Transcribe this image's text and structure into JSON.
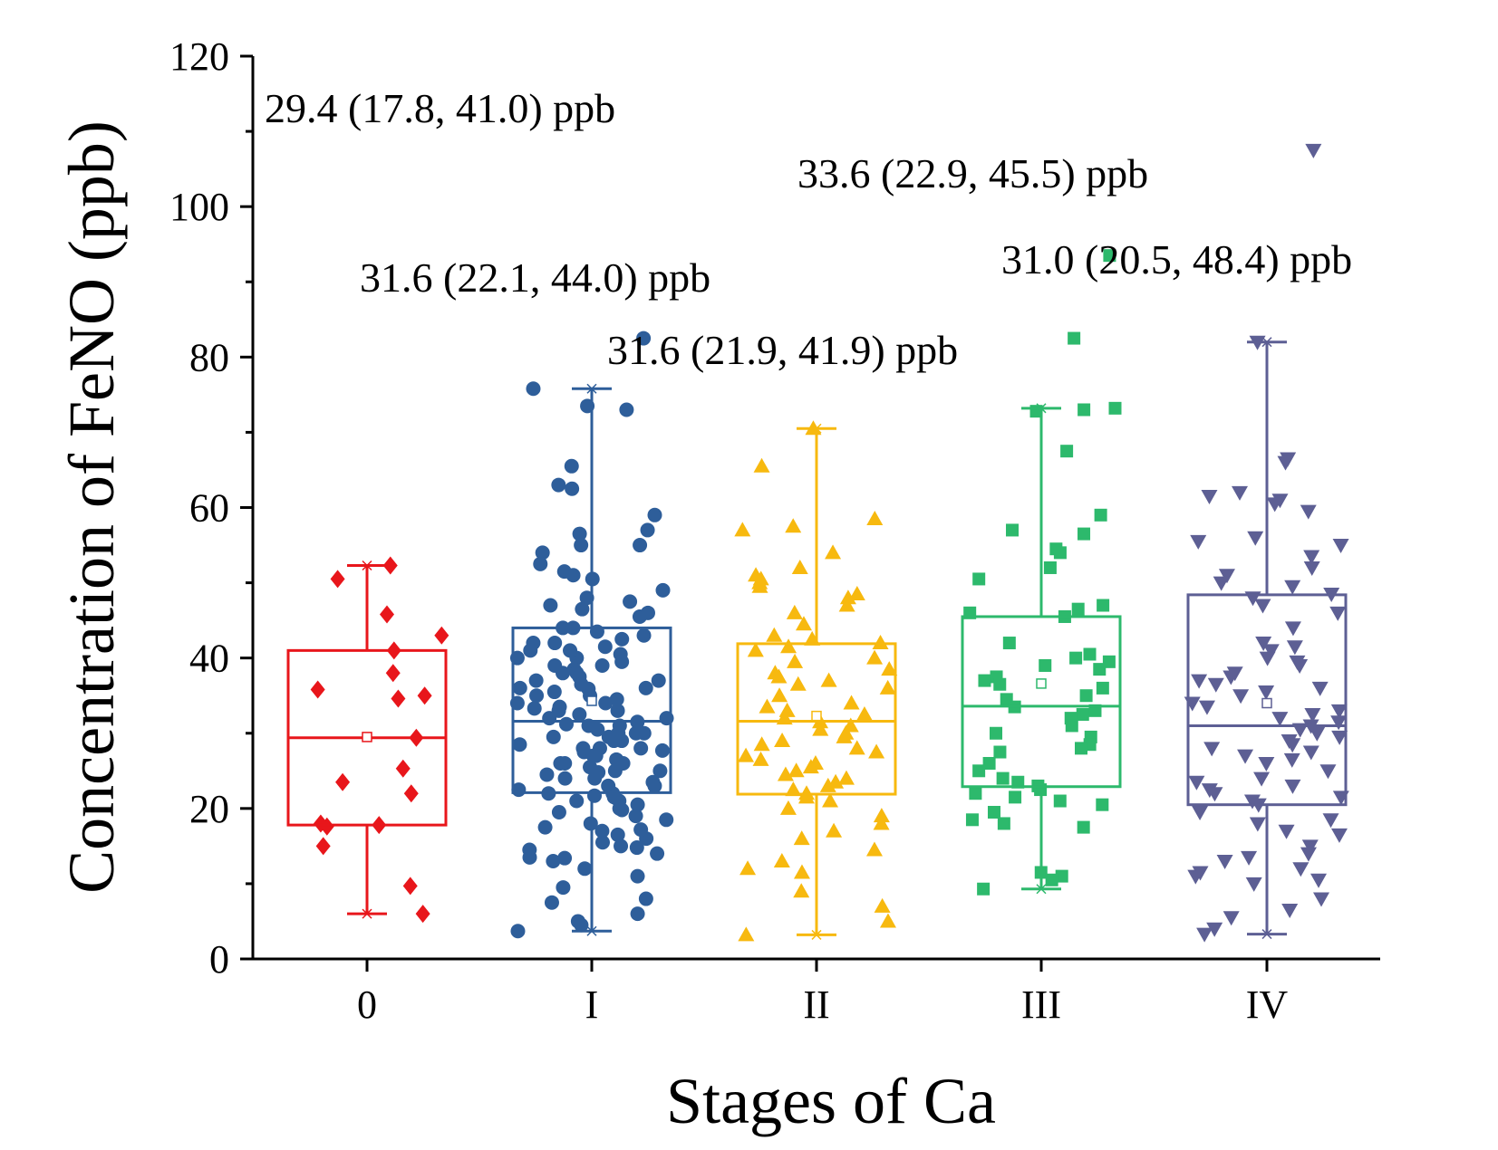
{
  "chart_data": {
    "type": "box",
    "xlabel": "Stages of Ca",
    "ylabel": "Concentration of FeNO (ppb)",
    "ylim": [
      0,
      120
    ],
    "yticks": [
      "0",
      "20",
      "40",
      "60",
      "80",
      "100",
      "120"
    ],
    "categories": [
      "0",
      "I",
      "II",
      "III",
      "IV"
    ],
    "series": [
      {
        "name": "0",
        "color": "#e8161b",
        "marker": "diamond",
        "min": 6.0,
        "q1": 17.8,
        "median": 29.4,
        "q3": 41.0,
        "max": 52.3,
        "mean": 29.5,
        "annotation": "29.4 (17.8, 41.0) ppb",
        "points": [
          52.3,
          50.5,
          45.8,
          43.0,
          41.0,
          38.0,
          35.8,
          35.0,
          34.6,
          29.4,
          25.3,
          23.5,
          22.0,
          18.0,
          17.8,
          17.6,
          15.0,
          9.7,
          6.0
        ]
      },
      {
        "name": "I",
        "color": "#2e5e9a",
        "marker": "circle",
        "min": 3.7,
        "q1": 22.1,
        "median": 31.6,
        "q3": 44.0,
        "max": 75.8,
        "mean": 34.3,
        "annotation": "31.6 (22.1, 44.0) ppb",
        "points": [
          82.5,
          75.8,
          73.5,
          73.0,
          65.5,
          63.0,
          62.5,
          59.0,
          57.0,
          56.5,
          55.0,
          55.0,
          54.0,
          52.5,
          51.5,
          51.0,
          50.5,
          49.0,
          48.0,
          47.5,
          47.0,
          46.5,
          46.0,
          45.5,
          44.0,
          43.5,
          43.0,
          42.5,
          42.0,
          41.5,
          41.0,
          40.5,
          40.0,
          39.5,
          39.0,
          38.5,
          38.0,
          37.5,
          37.0,
          36.5,
          36.0,
          35.5,
          35.0,
          34.5,
          34.0,
          33.5,
          33.0,
          32.5,
          32.0,
          31.5,
          31.0,
          30.5,
          30.0,
          29.5,
          29.0,
          28.5,
          28.0,
          27.5,
          27.0,
          26.5,
          26.0,
          25.5,
          25.0,
          24.5,
          24.0,
          23.5,
          23.0,
          22.5,
          22.0,
          21.5,
          21.0,
          20.5,
          20.0,
          19.5,
          19.0,
          18.5,
          18.0,
          17.5,
          17.0,
          16.5,
          16.0,
          15.5,
          15.0,
          14.5,
          14.0,
          13.5,
          13.0,
          12.0,
          11.0,
          9.5,
          8.0,
          7.5,
          6.0,
          5.0,
          4.5,
          3.7,
          24.0,
          26.0,
          28.0,
          30.0,
          32.0,
          34.0,
          36.0,
          38.0,
          40.0,
          42.0,
          27.0,
          29.0,
          31.0,
          33.0,
          35.0,
          25.0,
          23.0,
          21.0,
          37.0,
          39.0,
          22.0,
          30.0,
          28.0,
          26.0,
          20.0,
          41.0,
          44.0,
          29.5,
          31.2,
          33.3,
          24.8,
          27.7,
          19.8,
          21.7,
          17.2,
          14.8,
          13.4,
          35.9
        ]
      },
      {
        "name": "II",
        "color": "#f7b90f",
        "marker": "triangle-up",
        "min": 3.2,
        "q1": 21.9,
        "median": 31.6,
        "q3": 41.9,
        "max": 70.5,
        "mean": 32.3,
        "annotation": "31.6 (21.9, 41.9) ppb",
        "points": [
          70.5,
          65.5,
          58.5,
          57.5,
          57.0,
          54.0,
          52.0,
          51.0,
          50.5,
          50.0,
          49.5,
          48.5,
          48.0,
          47.0,
          46.0,
          43.0,
          42.5,
          42.0,
          41.5,
          41.0,
          40.0,
          39.5,
          38.5,
          38.0,
          37.5,
          37.0,
          36.0,
          35.0,
          34.0,
          33.0,
          32.5,
          32.0,
          31.5,
          31.0,
          30.5,
          30.0,
          29.5,
          29.0,
          28.5,
          28.0,
          27.0,
          26.5,
          26.0,
          25.5,
          25.0,
          24.0,
          23.5,
          23.0,
          22.5,
          22.0,
          21.5,
          21.0,
          20.0,
          19.0,
          18.0,
          17.0,
          16.0,
          14.5,
          13.0,
          12.0,
          11.5,
          9.0,
          7.0,
          5.0,
          3.2,
          44.5,
          36.5,
          33.5,
          27.5,
          24.5
        ]
      },
      {
        "name": "III",
        "color": "#2db96c",
        "marker": "square",
        "min": 9.3,
        "q1": 22.9,
        "median": 33.6,
        "q3": 45.5,
        "max": 73.2,
        "mean": 36.6,
        "annotation": "33.6 (22.9, 45.5) ppb",
        "points": [
          93.5,
          82.5,
          73.2,
          73.0,
          72.8,
          67.5,
          59.0,
          57.0,
          56.5,
          54.5,
          54.0,
          52.0,
          50.5,
          47.0,
          46.5,
          46.0,
          45.5,
          42.0,
          40.5,
          40.0,
          39.5,
          39.0,
          38.5,
          37.5,
          37.0,
          36.5,
          36.0,
          35.0,
          34.5,
          33.5,
          33.0,
          32.5,
          32.0,
          31.0,
          30.0,
          29.5,
          28.5,
          28.0,
          27.5,
          26.0,
          25.0,
          24.0,
          23.5,
          23.0,
          22.5,
          22.0,
          21.5,
          21.0,
          20.5,
          19.5,
          18.5,
          18.0,
          17.5,
          11.5,
          11.0,
          10.5,
          9.3
        ]
      },
      {
        "name": "IV",
        "color": "#5d5f94",
        "marker": "triangle-down",
        "min": 3.3,
        "q1": 20.5,
        "median": 31.0,
        "q3": 48.4,
        "max": 82.0,
        "mean": 34.0,
        "annotation": "31.0 (20.5, 48.4) ppb",
        "points": [
          107.5,
          82.0,
          66.5,
          66.0,
          62.0,
          61.5,
          61.0,
          60.5,
          59.5,
          56.0,
          55.5,
          55.0,
          53.5,
          52.0,
          51.0,
          50.0,
          49.5,
          48.5,
          48.0,
          47.0,
          46.0,
          44.0,
          42.0,
          41.5,
          41.0,
          40.0,
          39.5,
          39.0,
          38.0,
          37.5,
          37.0,
          36.5,
          36.0,
          35.5,
          35.0,
          34.0,
          33.5,
          33.0,
          32.5,
          32.0,
          31.5,
          31.0,
          30.5,
          30.0,
          29.5,
          29.0,
          28.5,
          28.0,
          27.5,
          27.0,
          26.5,
          26.0,
          25.0,
          24.0,
          23.5,
          23.0,
          22.5,
          22.0,
          21.5,
          21.0,
          20.5,
          19.5,
          18.5,
          18.0,
          17.0,
          16.5,
          15.0,
          14.0,
          13.5,
          13.0,
          12.0,
          11.5,
          11.0,
          10.5,
          10.0,
          8.0,
          6.5,
          5.5,
          4.0,
          3.3
        ]
      }
    ]
  }
}
